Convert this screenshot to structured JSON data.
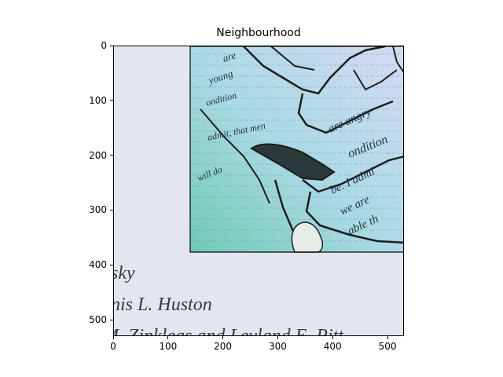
{
  "title": "Neighbourhood",
  "image": {
    "description_icon": "image-panel",
    "background_color": "#e4e6ef",
    "inset_colors": [
      "#7fd0c0",
      "#a6d9e8",
      "#c9d6f0",
      "#e5eaf2"
    ],
    "caption_lines": [
      "sky",
      "nis L. Huston",
      "M. Zinkleas and Leyland E. Pitt"
    ],
    "collage_text": [
      "are",
      "young",
      "ondition",
      "admit, that men",
      "will do",
      "be. I admi",
      "we are",
      "able th",
      "ondition",
      "are angry"
    ]
  },
  "axes": {
    "x_ticks": [
      "0",
      "100",
      "200",
      "300",
      "400",
      "500"
    ],
    "y_ticks": [
      "0",
      "100",
      "200",
      "300",
      "400",
      "500"
    ],
    "xlim": [
      0,
      530
    ],
    "ylim": [
      530,
      0
    ]
  }
}
